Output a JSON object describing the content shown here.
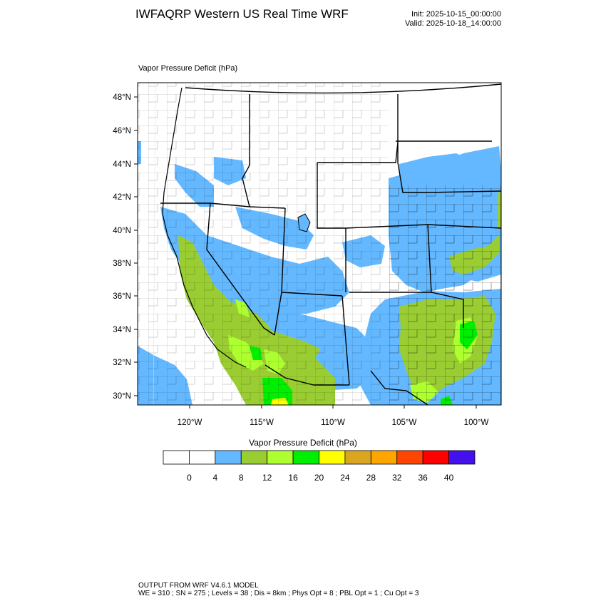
{
  "header": {
    "title": "IWFAQRP Western US Real Time WRF",
    "init": "Init: 2025-10-15_00:00:00",
    "valid": "Valid: 2025-10-18_14:00:00"
  },
  "map": {
    "field_label": "Vapor Pressure Deficit   (hPa)",
    "lat_labels": [
      "48°N",
      "46°N",
      "44°N",
      "42°N",
      "40°N",
      "38°N",
      "36°N",
      "34°N",
      "32°N",
      "30°N"
    ],
    "lon_labels": [
      "120°W",
      "115°W",
      "110°W",
      "105°W",
      "100°W"
    ]
  },
  "legend": {
    "title": "Vapor Pressure Deficit  (hPa)",
    "colors": [
      "#ffffff",
      "#ffffff",
      "#63b8ff",
      "#9acd32",
      "#adff2f",
      "#00ee00",
      "#ffff00",
      "#daa520",
      "#ffa500",
      "#ff4500",
      "#ff0000",
      "#4411ee"
    ],
    "ticks": [
      "0",
      "4",
      "8",
      "12",
      "16",
      "20",
      "24",
      "28",
      "32",
      "36",
      "40"
    ]
  },
  "footer": {
    "line1": "OUTPUT FROM WRF V4.6.1 MODEL",
    "line2": "WE = 310 ; SN = 275 ; Levels = 38 ; Dis = 8km ; Phys Opt = 8 ; PBL Opt = 1 ; Cu Opt = 3"
  }
}
